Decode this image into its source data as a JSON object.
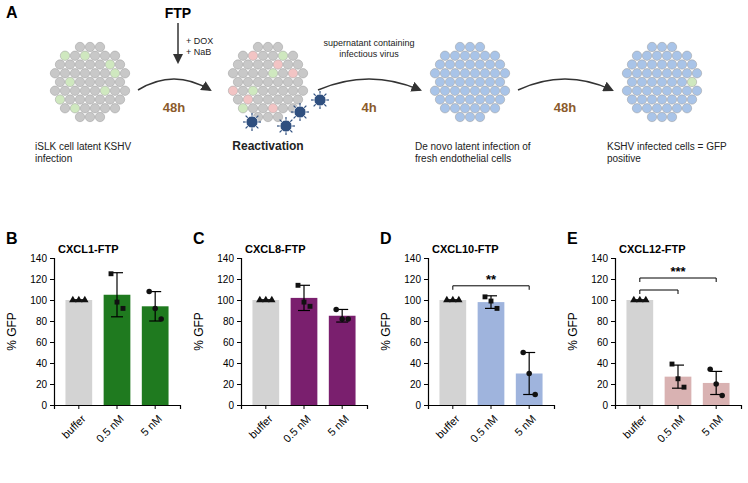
{
  "diagram": {
    "panel": "A",
    "trigger": "FTP",
    "treatment": [
      "+ DOX",
      "+ NaB"
    ],
    "stages": [
      "iSLK cell latent KSHV infection",
      "Reactivation",
      "De novo latent infection of fresh endothelial cells",
      "KSHV infected cells = GFP positive"
    ],
    "transitions": [
      {
        "time": "48h"
      },
      {
        "note": "supernatant containing infectious virus",
        "time": "4h"
      },
      {
        "time": "48h"
      }
    ]
  },
  "chart_data": [
    {
      "type": "bar",
      "panel": "B",
      "title": "CXCL1-FTP",
      "y_label": "% GFP",
      "categories": [
        "buffer",
        "0.5 nM",
        "5 nM"
      ],
      "values": [
        100,
        105,
        94
      ],
      "errors": [
        0,
        21,
        14
      ],
      "points": [
        [
          100,
          100,
          100
        ],
        [
          125,
          98,
          92
        ],
        [
          108,
          92,
          82
        ]
      ],
      "colors": [
        "#d3d3d3",
        "#1f7a1f",
        "#1f7a1f"
      ],
      "ylim": [
        0,
        140
      ],
      "yticks": [
        0,
        20,
        40,
        60,
        80,
        100,
        120,
        140
      ],
      "grid": false
    },
    {
      "type": "bar",
      "panel": "C",
      "title": "CXCL8-FTP",
      "y_label": "% GFP",
      "categories": [
        "buffer",
        "0.5 nM",
        "5 nM"
      ],
      "values": [
        100,
        102,
        85
      ],
      "errors": [
        0,
        12,
        6
      ],
      "points": [
        [
          100,
          100,
          100
        ],
        [
          114,
          98,
          94
        ],
        [
          91,
          82,
          82
        ]
      ],
      "colors": [
        "#d3d3d3",
        "#7a1f6e",
        "#7a1f6e"
      ],
      "ylim": [
        0,
        140
      ],
      "yticks": [
        0,
        20,
        40,
        60,
        80,
        100,
        120,
        140
      ],
      "grid": false
    },
    {
      "type": "bar",
      "panel": "D",
      "title": "CXCL10-FTP",
      "y_label": "% GFP",
      "categories": [
        "buffer",
        "0.5 nM",
        "5 nM"
      ],
      "values": [
        100,
        98,
        30
      ],
      "errors": [
        0,
        6,
        20
      ],
      "points": [
        [
          100,
          100,
          100
        ],
        [
          103,
          99,
          92
        ],
        [
          50,
          30,
          10
        ]
      ],
      "colors": [
        "#d3d3d3",
        "#9fb4dd",
        "#9fb4dd"
      ],
      "annotations": [
        {
          "text": "**",
          "from": "buffer",
          "to": [
            "5 nM"
          ]
        }
      ],
      "ylim": [
        0,
        140
      ],
      "yticks": [
        0,
        20,
        40,
        60,
        80,
        100,
        120,
        140
      ],
      "grid": false
    },
    {
      "type": "bar",
      "panel": "E",
      "title": "CXCL12-FTP",
      "y_label": "% GFP",
      "categories": [
        "buffer",
        "0.5 nM",
        "5 nM"
      ],
      "values": [
        100,
        27,
        21
      ],
      "errors": [
        0,
        11,
        11
      ],
      "points": [
        [
          100,
          100,
          100
        ],
        [
          39,
          25,
          17
        ],
        [
          34,
          20,
          9
        ]
      ],
      "colors": [
        "#d3d3d3",
        "#d9b2b2",
        "#d9b2b2"
      ],
      "annotations": [
        {
          "text": "***",
          "from": "buffer",
          "to": [
            "0.5 nM",
            "5 nM"
          ]
        }
      ],
      "ylim": [
        0,
        140
      ],
      "yticks": [
        0,
        20,
        40,
        60,
        80,
        100,
        120,
        140
      ],
      "grid": false
    }
  ]
}
